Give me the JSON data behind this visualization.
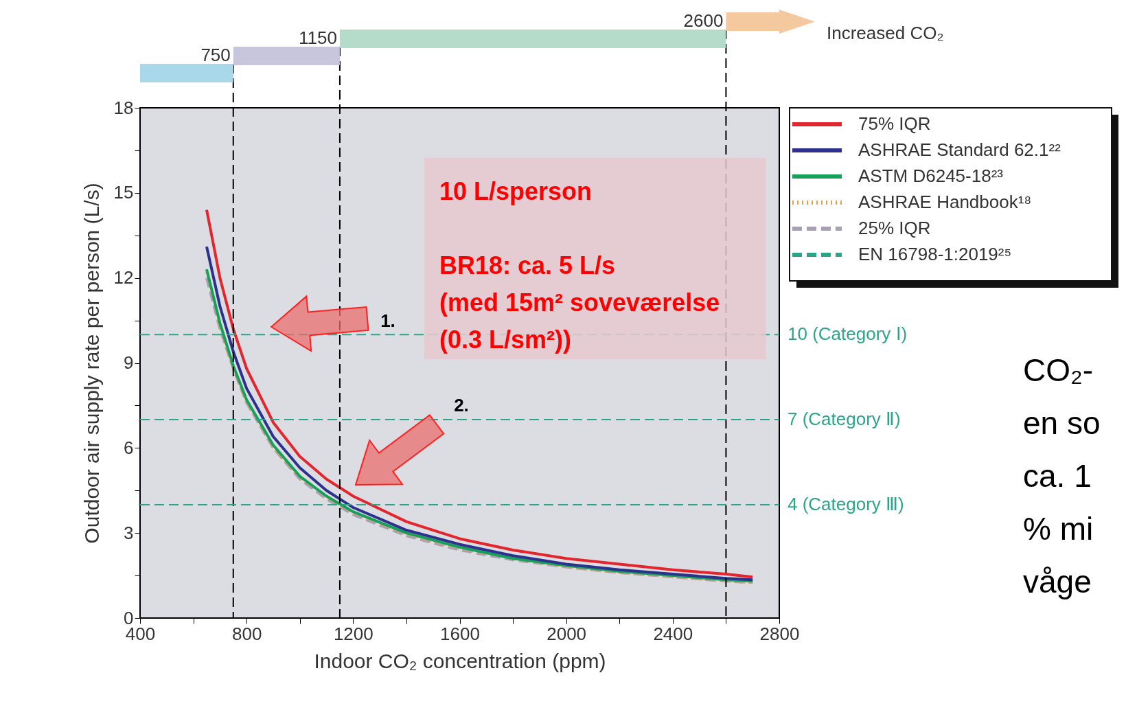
{
  "chart_data": {
    "type": "line",
    "xlabel": "Indoor CO₂ concentration (ppm)",
    "ylabel": "Outdoor air supply rate per person (L/s)",
    "x": [
      650,
      700,
      750,
      800,
      900,
      1000,
      1100,
      1200,
      1400,
      1600,
      1800,
      2000,
      2200,
      2400,
      2600,
      2700
    ],
    "series": [
      {
        "name": "75% IQR",
        "color": "#e3262e",
        "line_style": "solid",
        "values": [
          14.4,
          12.0,
          10.2,
          8.8,
          6.9,
          5.7,
          4.9,
          4.3,
          3.4,
          2.8,
          2.4,
          2.1,
          1.9,
          1.7,
          1.55,
          1.45
        ]
      },
      {
        "name": "ASHRAE Standard 62.1²²",
        "color": "#2b318c",
        "line_style": "solid",
        "values": [
          13.1,
          11.0,
          9.4,
          8.1,
          6.4,
          5.3,
          4.5,
          3.9,
          3.1,
          2.6,
          2.2,
          1.9,
          1.7,
          1.55,
          1.4,
          1.35
        ]
      },
      {
        "name": "ASTM D6245-18²³",
        "color": "#17a05a",
        "line_style": "solid",
        "values": [
          12.3,
          10.4,
          8.9,
          7.7,
          6.1,
          5.0,
          4.3,
          3.75,
          3.0,
          2.5,
          2.1,
          1.85,
          1.65,
          1.5,
          1.35,
          1.3
        ]
      },
      {
        "name": "ASHRAE Handbook¹⁸",
        "color": "#e8a04a",
        "line_style": "dotted",
        "values": [
          12.2,
          10.3,
          8.8,
          7.6,
          6.0,
          4.95,
          4.25,
          3.7,
          2.95,
          2.45,
          2.1,
          1.8,
          1.6,
          1.45,
          1.3,
          1.25
        ]
      },
      {
        "name": "25% IQR",
        "color": "#a9a0b4",
        "line_style": "dashed",
        "values": [
          12.0,
          10.2,
          8.8,
          7.6,
          6.0,
          4.9,
          4.2,
          3.65,
          2.9,
          2.4,
          2.05,
          1.8,
          1.6,
          1.45,
          1.3,
          1.25
        ]
      }
    ],
    "xlim": [
      400,
      2800
    ],
    "xticks": [
      400,
      {
        "value": 600,
        "label": null
      },
      800,
      {
        "value": 1000,
        "label": null
      },
      1200,
      {
        "value": 1400,
        "label": null
      },
      1600,
      {
        "value": 1800,
        "label": null
      },
      2000,
      {
        "value": 2200,
        "label": null
      },
      2400,
      {
        "value": 2600,
        "label": null
      },
      2800
    ],
    "ylim": [
      0,
      18
    ],
    "yticks": [
      0,
      {
        "value": 1.5,
        "label": null
      },
      3,
      {
        "value": 4.5,
        "label": null
      },
      6,
      {
        "value": 7.5,
        "label": null
      },
      9,
      {
        "value": 10.5,
        "label": null
      },
      12,
      {
        "value": 13.5,
        "label": null
      },
      15,
      {
        "value": 16.5,
        "label": null
      },
      18
    ],
    "ref_lines": [
      {
        "axis": "x",
        "value": 750,
        "label": "750",
        "color": "#000000",
        "line_style": "dashed"
      },
      {
        "axis": "x",
        "value": 1150,
        "label": "1150",
        "color": "#000000",
        "line_style": "dashed"
      },
      {
        "axis": "x",
        "value": 2600,
        "label": "2600",
        "color": "#000000",
        "line_style": "dashed"
      },
      {
        "axis": "y",
        "value": 10,
        "label": "10 (Category Ⅰ)",
        "color": "#2aa58a",
        "line_style": "dashed"
      },
      {
        "axis": "y",
        "value": 7,
        "label": "7 (Category Ⅱ)",
        "color": "#2aa58a",
        "line_style": "dashed"
      },
      {
        "axis": "y",
        "value": 4,
        "label": "4 (Category Ⅲ)",
        "color": "#2aa58a",
        "line_style": "dashed"
      }
    ],
    "annotations": [
      "Increased CO₂",
      "10 L/sperson\n\nBR18: ca. 5 L/s\n(med 15m² soveværelse\n(0.3 L/sm²))",
      "1.",
      "2.",
      "EN 16798-1:2019²⁵",
      "CO₂-\nen so\nca. 1\n% mi\nvåge"
    ],
    "legend": "top right"
  }
}
